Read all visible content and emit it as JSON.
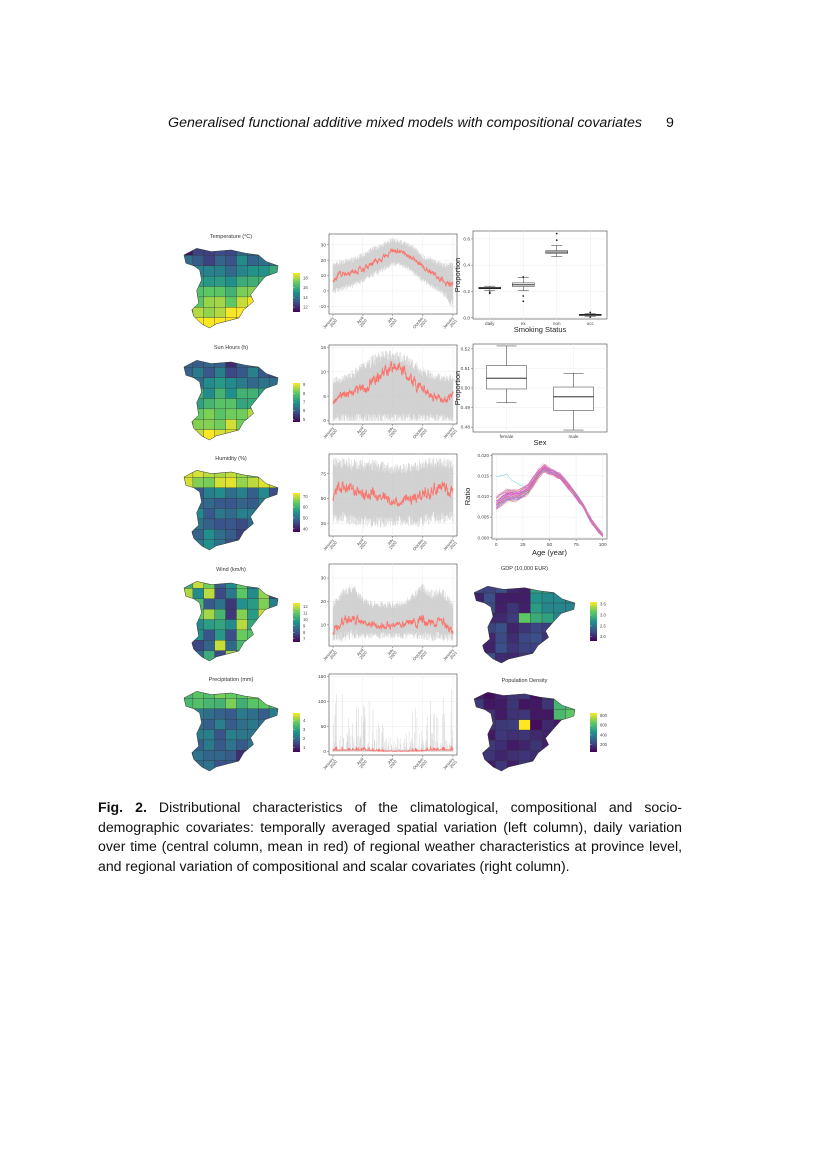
{
  "header": {
    "running_title": "Generalised functional additive mixed models with compositional covariates",
    "page_number": "9"
  },
  "caption": {
    "label": "Fig. 2.",
    "text": "Distributional characteristics of the climatological, compositional and socio-demographic covariates: temporally averaged spatial variation (left column), daily variation over time (central column, mean in red) of regional weather characteristics at province level, and regional variation of compositional and scalar covariates (right column)."
  },
  "colors": {
    "mean_line": "#f8766d",
    "band": "#c8c8c8",
    "viridis": [
      "#440154",
      "#3b528b",
      "#21918c",
      "#5ec962",
      "#fde725"
    ]
  },
  "chart_data": [
    {
      "type": "heatmap",
      "id": "map-temperature",
      "title": "Temperature (°C)",
      "colorbar_ticks": [
        "12",
        "14",
        "16",
        "18"
      ],
      "tick_values": [
        12,
        14,
        16,
        18
      ],
      "range": [
        11,
        19
      ]
    },
    {
      "type": "heatmap",
      "id": "map-sun",
      "title": "Sun Hours (h)",
      "colorbar_ticks": [
        "5",
        "6",
        "7",
        "8",
        "9"
      ],
      "tick_values": [
        5,
        6,
        7,
        8,
        9
      ],
      "range": [
        4.7,
        9.2
      ]
    },
    {
      "type": "heatmap",
      "id": "map-humidity",
      "title": "Humidity (%)",
      "colorbar_ticks": [
        "40",
        "50",
        "60",
        "70"
      ],
      "tick_values": [
        40,
        50,
        60,
        70
      ],
      "range": [
        37,
        73
      ]
    },
    {
      "type": "heatmap",
      "id": "map-wind",
      "title": "Wind (km/h)",
      "colorbar_ticks": [
        "7",
        "8",
        "9",
        "10",
        "11",
        "12"
      ],
      "tick_values": [
        7,
        8,
        9,
        10,
        11,
        12
      ],
      "range": [
        6.5,
        12.5
      ]
    },
    {
      "type": "heatmap",
      "id": "map-precipitation",
      "title": "Precipitation (mm)",
      "colorbar_ticks": [
        "1",
        "2",
        "3",
        "4"
      ],
      "tick_values": [
        1,
        2,
        3,
        4
      ],
      "range": [
        0.5,
        4.8
      ]
    },
    {
      "type": "line",
      "id": "ts-temperature",
      "x_ticks": [
        "January 2020",
        "April 2020",
        "July 2020",
        "October 2020",
        "January 2021"
      ],
      "y_ticks": [
        -10,
        0,
        10,
        20,
        30
      ],
      "ylim": [
        -15,
        37
      ],
      "mean_monthly": [
        8,
        11,
        12,
        14,
        18,
        22,
        26,
        25,
        21,
        15,
        12,
        7,
        4
      ],
      "band_low_monthly": [
        -2,
        0,
        2,
        5,
        9,
        12,
        16,
        15,
        11,
        5,
        1,
        -3,
        -12
      ],
      "band_high_monthly": [
        19,
        21,
        22,
        25,
        29,
        32,
        35,
        33,
        30,
        24,
        21,
        19,
        20
      ]
    },
    {
      "type": "line",
      "id": "ts-sun",
      "x_ticks": [
        "January 2020",
        "April 2020",
        "July 2020",
        "October 2020",
        "January 2021"
      ],
      "y_ticks": [
        0,
        5,
        10,
        15
      ],
      "ylim": [
        -0.7,
        15.5
      ],
      "mean_monthly": [
        4,
        5,
        6,
        6.5,
        8,
        10,
        11,
        10,
        8,
        6.5,
        5,
        4,
        5
      ],
      "band_low_monthly": [
        0,
        0,
        0,
        0,
        0,
        0,
        0,
        0,
        0,
        0,
        0,
        0,
        0
      ],
      "band_high_monthly": [
        9,
        9.5,
        10.5,
        12,
        13.5,
        14.5,
        14.5,
        14,
        12.5,
        11,
        10,
        9.5,
        9.5
      ]
    },
    {
      "type": "line",
      "id": "ts-humidity",
      "x_ticks": [
        "January 2020",
        "April 2020",
        "July 2020",
        "October 2020",
        "January 2021"
      ],
      "y_ticks": [
        25,
        50,
        75
      ],
      "ylim": [
        12,
        95
      ],
      "mean_monthly": [
        55,
        62,
        57,
        55,
        55,
        50,
        48,
        47,
        50,
        55,
        58,
        62,
        55
      ],
      "band_low_monthly": [
        22,
        25,
        22,
        20,
        20,
        20,
        22,
        22,
        20,
        22,
        25,
        25,
        25
      ],
      "band_high_monthly": [
        92,
        92,
        90,
        90,
        90,
        88,
        85,
        85,
        88,
        90,
        92,
        92,
        90
      ]
    },
    {
      "type": "line",
      "id": "ts-wind",
      "x_ticks": [
        "January 2020",
        "April 2020",
        "July 2020",
        "October 2020",
        "January 2021"
      ],
      "y_ticks": [
        10,
        20,
        30
      ],
      "ylim": [
        1,
        36
      ],
      "mean_monthly": [
        7,
        12,
        13,
        11,
        10,
        10,
        10,
        10,
        11,
        12,
        11,
        12,
        7
      ],
      "band_low_monthly": [
        3,
        3,
        4,
        4,
        4,
        4,
        4,
        4,
        4,
        3,
        3,
        3,
        3
      ],
      "band_high_monthly": [
        20,
        26,
        28,
        22,
        20,
        20,
        20,
        20,
        24,
        28,
        25,
        26,
        20
      ]
    },
    {
      "type": "line",
      "id": "ts-precipitation",
      "x_ticks": [
        "January 2020",
        "April 2020",
        "July 2020",
        "October 2020",
        "January 2021"
      ],
      "y_ticks": [
        0,
        50,
        100,
        150
      ],
      "ylim": [
        -7,
        155
      ],
      "mean_monthly": [
        2,
        3,
        3,
        3,
        2,
        1,
        0.5,
        0.5,
        1,
        2,
        3,
        3,
        3
      ],
      "band_low_monthly": [
        0,
        0,
        0,
        0,
        0,
        0,
        0,
        0,
        0,
        0,
        0,
        0,
        0
      ],
      "band_high_monthly": [
        40,
        50,
        45,
        50,
        40,
        20,
        10,
        10,
        30,
        45,
        50,
        50,
        50
      ]
    },
    {
      "type": "box",
      "id": "box-smoking",
      "xlabel": "Smoking Status",
      "ylabel": "Proportion",
      "y_ticks": [
        "0.0",
        "0.2",
        "0.4",
        "0.6"
      ],
      "tick_values": [
        0,
        0.2,
        0.4,
        0.6
      ],
      "ylim": [
        -0.01,
        0.66
      ],
      "categories": [
        "daily",
        "ex",
        "non",
        "occ"
      ],
      "stats": [
        {
          "lo": 0.205,
          "q1": 0.22,
          "med": 0.225,
          "q3": 0.232,
          "hi": 0.24,
          "outliers": [
            0.185,
            0.195
          ]
        },
        {
          "lo": 0.205,
          "q1": 0.238,
          "med": 0.25,
          "q3": 0.265,
          "hi": 0.305,
          "outliers": [
            0.125,
            0.165,
            0.31
          ]
        },
        {
          "lo": 0.465,
          "q1": 0.49,
          "med": 0.5,
          "q3": 0.51,
          "hi": 0.55,
          "outliers": [
            0.59,
            0.64
          ]
        },
        {
          "lo": 0.008,
          "q1": 0.016,
          "med": 0.021,
          "q3": 0.026,
          "hi": 0.033,
          "outliers": [
            0.004,
            0.04
          ]
        }
      ]
    },
    {
      "type": "box",
      "id": "box-sex",
      "xlabel": "Sex",
      "ylabel": "Proportion",
      "y_ticks": [
        "0.48",
        "0.49",
        "0.50",
        "0.51",
        "0.52"
      ],
      "tick_values": [
        0.48,
        0.49,
        0.5,
        0.51,
        0.52
      ],
      "ylim": [
        0.4775,
        0.5225
      ],
      "categories": [
        "female",
        "male"
      ],
      "stats": [
        {
          "lo": 0.4925,
          "q1": 0.4995,
          "med": 0.505,
          "q3": 0.5115,
          "hi": 0.5215,
          "outliers": []
        },
        {
          "lo": 0.4785,
          "q1": 0.4885,
          "med": 0.4955,
          "q3": 0.5005,
          "hi": 0.5075,
          "outliers": []
        }
      ]
    },
    {
      "type": "line",
      "id": "age-ratio",
      "xlabel": "Age (year)",
      "ylabel": "Ratio",
      "x_ticks": [
        0,
        25,
        50,
        75,
        100
      ],
      "y_ticks": [
        "0.000",
        "0.005",
        "0.010",
        "0.015",
        "0.020"
      ],
      "tick_values": [
        0,
        0.005,
        0.01,
        0.015,
        0.02
      ],
      "xlim": [
        -4,
        104
      ],
      "ylim": [
        -0.0003,
        0.0203
      ],
      "mean_curve": {
        "age": [
          0,
          10,
          20,
          30,
          40,
          45,
          50,
          60,
          70,
          80,
          90,
          100
        ],
        "ratio": [
          0.0085,
          0.0105,
          0.0105,
          0.012,
          0.0158,
          0.0172,
          0.0163,
          0.015,
          0.012,
          0.0085,
          0.0038,
          0.0005
        ]
      },
      "n_series": 45
    },
    {
      "type": "heatmap",
      "id": "map-gdp",
      "title": "GDP (10,000 EUR)",
      "colorbar_ticks": [
        "2.0",
        "2.5",
        "3.0",
        "3.5"
      ],
      "tick_values": [
        2.0,
        2.5,
        3.0,
        3.5
      ],
      "range": [
        1.8,
        3.6
      ]
    },
    {
      "type": "heatmap",
      "id": "map-population",
      "title": "Population Density",
      "colorbar_ticks": [
        "200",
        "400",
        "600",
        "800"
      ],
      "tick_values": [
        200,
        400,
        600,
        800
      ],
      "range": [
        50,
        850
      ]
    }
  ]
}
